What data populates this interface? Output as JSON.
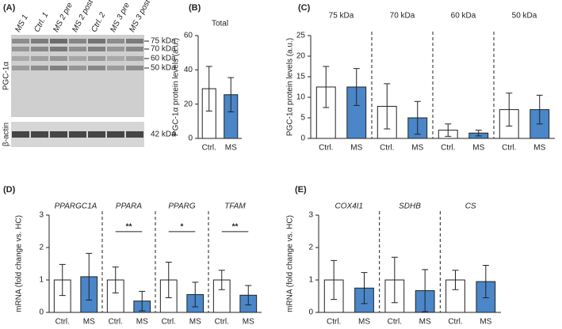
{
  "blot": {
    "label": "(A)",
    "lanes": [
      "MS 1",
      "Ctrl. 1",
      "MS 2 pre",
      "MS 2 post",
      "Ctrl. 2",
      "MS 3 pre",
      "MS 3 post"
    ],
    "target": "PGC-1α",
    "loading": "β-actin",
    "markers": [
      "75 kDa",
      "70 kDa",
      "60 kDa",
      "50 kDa"
    ],
    "loading_marker": "42 kDa"
  },
  "chart_data": [
    {
      "type": "bar",
      "label": "(B)",
      "ylabel": "PGC-1α protein levels (a.u.)",
      "ylim": [
        0,
        60
      ],
      "yticks": [
        0,
        20,
        40,
        60
      ],
      "colors": [
        "#ffffff",
        "#4a86c8"
      ],
      "italic_group_names": false,
      "groups": [
        {
          "name": "Total",
          "categories": [
            "Ctrl.",
            "MS"
          ],
          "values": [
            29,
            25.5
          ],
          "errors": [
            13,
            10
          ]
        }
      ]
    },
    {
      "type": "bar",
      "label": "(C)",
      "ylabel": "PGC-1α protein levels (a.u.)",
      "ylim": [
        0,
        25
      ],
      "yticks": [
        0,
        5,
        10,
        15,
        20,
        25
      ],
      "colors": [
        "#ffffff",
        "#4a86c8"
      ],
      "italic_group_names": false,
      "groups": [
        {
          "name": "75 kDa",
          "categories": [
            "Ctrl.",
            "MS"
          ],
          "values": [
            12.5,
            12.5
          ],
          "errors": [
            5,
            4.5
          ]
        },
        {
          "name": "70 kDa",
          "categories": [
            "Ctrl.",
            "MS"
          ],
          "values": [
            7.8,
            5
          ],
          "errors": [
            5.5,
            4
          ]
        },
        {
          "name": "60 kDa",
          "categories": [
            "Ctrl.",
            "MS"
          ],
          "values": [
            2,
            1.3
          ],
          "errors": [
            1.5,
            0.7
          ]
        },
        {
          "name": "50 kDa",
          "categories": [
            "Ctrl.",
            "MS"
          ],
          "values": [
            7,
            7
          ],
          "errors": [
            4,
            3.5
          ]
        }
      ]
    },
    {
      "type": "bar",
      "label": "(D)",
      "ylabel": "mRNA (fold change vs. HC)",
      "ylim": [
        0,
        3
      ],
      "yticks": [
        0,
        1,
        2,
        3
      ],
      "colors": [
        "#ffffff",
        "#4a86c8"
      ],
      "italic_group_names": true,
      "groups": [
        {
          "name": "PPARGC1A",
          "categories": [
            "Ctrl.",
            "MS"
          ],
          "values": [
            1,
            1.1
          ],
          "errors": [
            0.48,
            0.72
          ]
        },
        {
          "name": "PPARA",
          "categories": [
            "Ctrl.",
            "MS"
          ],
          "values": [
            1,
            0.35
          ],
          "errors": [
            0.4,
            0.3
          ],
          "significance": "**"
        },
        {
          "name": "PPARG",
          "categories": [
            "Ctrl.",
            "MS"
          ],
          "values": [
            1,
            0.55
          ],
          "errors": [
            0.55,
            0.38
          ],
          "significance": "*"
        },
        {
          "name": "TFAM",
          "categories": [
            "Ctrl.",
            "MS"
          ],
          "values": [
            1,
            0.53
          ],
          "errors": [
            0.3,
            0.3
          ],
          "significance": "**"
        }
      ]
    },
    {
      "type": "bar",
      "label": "(E)",
      "ylabel": "mRNA (fold change vs. HC)",
      "ylim": [
        0,
        3
      ],
      "yticks": [
        0,
        1,
        2,
        3
      ],
      "colors": [
        "#ffffff",
        "#4a86c8"
      ],
      "italic_group_names": true,
      "groups": [
        {
          "name": "COX4I1",
          "categories": [
            "Ctrl.",
            "MS"
          ],
          "values": [
            1,
            0.75
          ],
          "errors": [
            0.6,
            0.48
          ]
        },
        {
          "name": "SDHB",
          "categories": [
            "Ctrl.",
            "MS"
          ],
          "values": [
            1,
            0.67
          ],
          "errors": [
            0.7,
            0.65
          ]
        },
        {
          "name": "CS",
          "categories": [
            "Ctrl.",
            "MS"
          ],
          "values": [
            1,
            0.95
          ],
          "errors": [
            0.3,
            0.5
          ]
        }
      ]
    }
  ]
}
